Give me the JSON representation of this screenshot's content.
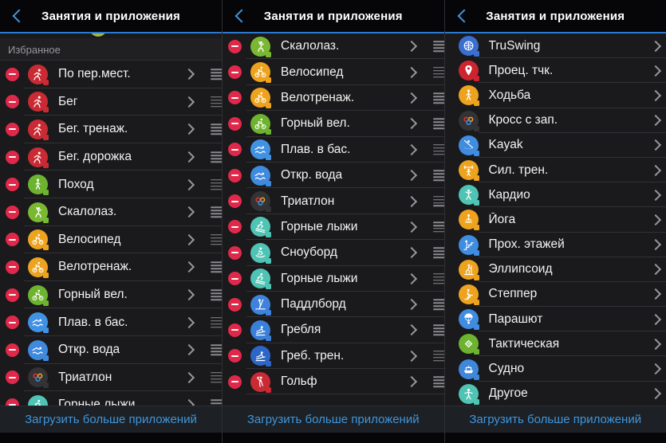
{
  "header": {
    "title": "Занятия и приложения"
  },
  "footer": {
    "link": "Загрузить больше приложений"
  },
  "colors": {
    "accent_blue": "#3e96dd",
    "header_divider": "#2b7ad0",
    "delete_red": "#e0294a",
    "activity_red": "#c92a33",
    "activity_green": "#6db32f",
    "activity_orange": "#eea31e",
    "activity_blue": "#3f8ade",
    "activity_teal": "#4fc4b4",
    "activity_dark": "#333336"
  },
  "panels": [
    {
      "section_label": "Избранное",
      "editable": true,
      "rows": [
        {
          "label": "По пер.мест.",
          "icon": "run",
          "color": "#c92a33"
        },
        {
          "label": "Бег",
          "icon": "run",
          "color": "#c92a33"
        },
        {
          "label": "Бег. тренаж.",
          "icon": "run",
          "color": "#c92a33"
        },
        {
          "label": "Бег. дорожка",
          "icon": "run",
          "color": "#c92a33"
        },
        {
          "label": "Поход",
          "icon": "walk",
          "color": "#6db32f"
        },
        {
          "label": "Скалолаз.",
          "icon": "climb",
          "color": "#7ab832"
        },
        {
          "label": "Велосипед",
          "icon": "bike",
          "color": "#eea31e"
        },
        {
          "label": "Велотренаж.",
          "icon": "bike",
          "color": "#eea31e"
        },
        {
          "label": "Горный вел.",
          "icon": "bike",
          "color": "#6db32f"
        },
        {
          "label": "Плав. в бас.",
          "icon": "swim",
          "color": "#4292e4"
        },
        {
          "label": "Откр. вода",
          "icon": "swim",
          "color": "#3f8ade"
        },
        {
          "label": "Триатлон",
          "icon": "links",
          "color": "#333336"
        },
        {
          "label": "Горные лыжи",
          "icon": "ski",
          "color": "#4fc4b4"
        }
      ]
    },
    {
      "section_label": "",
      "editable": true,
      "rows": [
        {
          "label": "Скалолаз.",
          "icon": "climb",
          "color": "#7ab832"
        },
        {
          "label": "Велосипед",
          "icon": "bike",
          "color": "#eea31e"
        },
        {
          "label": "Велотренаж.",
          "icon": "bike",
          "color": "#eea31e"
        },
        {
          "label": "Горный вел.",
          "icon": "bike",
          "color": "#6db32f"
        },
        {
          "label": "Плав. в бас.",
          "icon": "swim",
          "color": "#4292e4"
        },
        {
          "label": "Откр. вода",
          "icon": "swim",
          "color": "#3f8ade"
        },
        {
          "label": "Триатлон",
          "icon": "links",
          "color": "#333336"
        },
        {
          "label": "Горные лыжи",
          "icon": "ski",
          "color": "#4fc4b4"
        },
        {
          "label": "Сноуборд",
          "icon": "snowboard",
          "color": "#4fc4b4"
        },
        {
          "label": "Горные лыжи",
          "icon": "ski",
          "color": "#4fc4b4"
        },
        {
          "label": "Паддлборд",
          "icon": "paddle",
          "color": "#3f82dd"
        },
        {
          "label": "Гребля",
          "icon": "row",
          "color": "#3a7fd9"
        },
        {
          "label": "Греб. трен.",
          "icon": "row",
          "color": "#2d66c8"
        },
        {
          "label": "Гольф",
          "icon": "golf",
          "color": "#c92a33"
        }
      ]
    },
    {
      "section_label": "",
      "editable": false,
      "rows": [
        {
          "label": "TruSwing",
          "icon": "globe",
          "color": "#3a6fd0"
        },
        {
          "label": "Проец. тчк.",
          "icon": "pin",
          "color": "#cd2430"
        },
        {
          "label": "Ходьба",
          "icon": "walk",
          "color": "#eea31e"
        },
        {
          "label": "Кросс с зап.",
          "icon": "links",
          "color": "#333336"
        },
        {
          "label": "Kayak",
          "icon": "kayak",
          "color": "#3f8ce0"
        },
        {
          "label": "Сил. трен.",
          "icon": "strength",
          "color": "#eea31e"
        },
        {
          "label": "Кардио",
          "icon": "cardio",
          "color": "#4fc4b4"
        },
        {
          "label": "Йога",
          "icon": "yoga",
          "color": "#eea31e"
        },
        {
          "label": "Прох. этажей",
          "icon": "stairs",
          "color": "#3f8ce0"
        },
        {
          "label": "Эллипсоид",
          "icon": "elliptical",
          "color": "#eea31e"
        },
        {
          "label": "Степпер",
          "icon": "stepper",
          "color": "#eea31e"
        },
        {
          "label": "Парашют",
          "icon": "parachute",
          "color": "#3f8ce0"
        },
        {
          "label": "Тактическая",
          "icon": "diamond",
          "color": "#6db32f"
        },
        {
          "label": "Судно",
          "icon": "boat",
          "color": "#3f87d8"
        },
        {
          "label": "Другое",
          "icon": "person",
          "color": "#4fc4b4"
        }
      ]
    }
  ]
}
